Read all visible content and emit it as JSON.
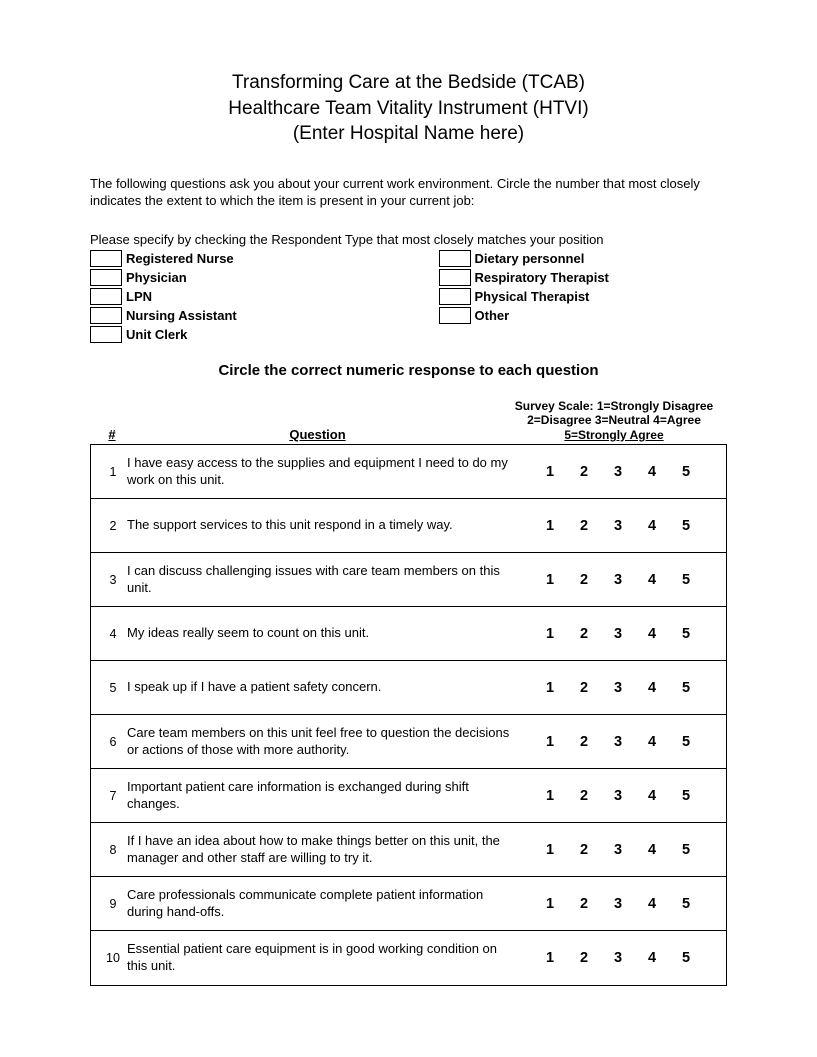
{
  "title": {
    "line1": "Transforming Care at the Bedside (TCAB)",
    "line2": "Healthcare Team Vitality Instrument (HTVI)",
    "line3": "(Enter Hospital Name here)"
  },
  "intro": "The following questions ask you about your current work environment.  Circle the number that most closely indicates the extent to which the item is present in your current job:",
  "specify_text": "Please specify by checking the Respondent Type that most closely matches your position",
  "respondents": {
    "col1": [
      "Registered Nurse",
      "Physician",
      "LPN",
      "Nursing Assistant",
      "Unit Clerk"
    ],
    "col2": [
      "Dietary personnel",
      "Respiratory Therapist",
      "Physical Therapist",
      "Other"
    ]
  },
  "instruction": "Circle the correct numeric response to each question",
  "headers": {
    "num": "#",
    "question": "Question",
    "scale_line1": "Survey Scale:  1=Strongly Disagree",
    "scale_line2": "2=Disagree  3=Neutral  4=Agree",
    "scale_line3": "5=Strongly Agree"
  },
  "scale_values": [
    "1",
    "2",
    "3",
    "4",
    "5"
  ],
  "questions": [
    {
      "n": "1",
      "t": "I have easy access to the supplies and equipment I need to do my work on this unit."
    },
    {
      "n": "2",
      "t": "The support services to this unit respond in a timely way."
    },
    {
      "n": "3",
      "t": "I can discuss challenging issues with care team members on this unit."
    },
    {
      "n": "4",
      "t": "My ideas really seem to count on this unit."
    },
    {
      "n": "5",
      "t": "I speak up if I have a patient safety concern."
    },
    {
      "n": "6",
      "t": "Care team members on this unit feel free to question the decisions or actions of those with more authority."
    },
    {
      "n": "7",
      "t": "Important patient care information is exchanged during shift changes."
    },
    {
      "n": "8",
      "t": "If I have an idea about how to make things better on this unit, the manager and other staff are willing to try it."
    },
    {
      "n": "9",
      "t": "Care professionals communicate complete patient information during hand-offs."
    },
    {
      "n": "10",
      "t": "Essential patient care equipment is in good working condition on this unit."
    }
  ]
}
